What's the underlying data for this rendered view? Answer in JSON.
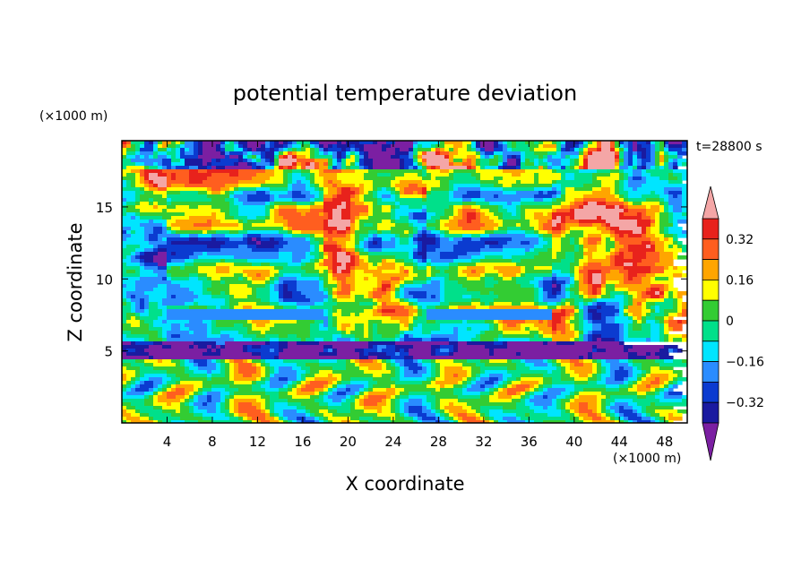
{
  "chart_data": {
    "type": "heatmap",
    "title": "potential temperature deviation",
    "xlabel": "X coordinate",
    "ylabel": "Z coordinate",
    "x_unit": "(×1000 m)",
    "y_unit": "(×1000 m)",
    "time_label": "t=28800 s",
    "xlim": [
      0,
      50
    ],
    "ylim": [
      0,
      19.6
    ],
    "x_ticks": [
      4,
      8,
      12,
      16,
      20,
      24,
      28,
      32,
      36,
      40,
      44,
      48
    ],
    "y_ticks": [
      5,
      10,
      15
    ],
    "colorbar": {
      "levels": [
        -0.4,
        -0.32,
        -0.24,
        -0.16,
        -0.08,
        0,
        0.08,
        0.16,
        0.24,
        0.32,
        0.4
      ],
      "tick_values": [
        0.32,
        0.16,
        0,
        -0.16,
        -0.32
      ],
      "tick_labels": [
        "0.32",
        "0.16",
        "0",
        "−0.16",
        "−0.32"
      ],
      "colors": [
        "#7b1fa2",
        "#1a1aa0",
        "#0b3bd0",
        "#2a8cff",
        "#00e5ff",
        "#00e08a",
        "#33cc33",
        "#ffff00",
        "#ffa500",
        "#ff5e1f",
        "#e8221c",
        "#f4a6a6"
      ],
      "extend": "both"
    },
    "description_regions": {
      "upper_band_z": [
        14,
        17
      ],
      "lower_turbulent_layer_z": [
        0,
        4.5
      ]
    }
  }
}
